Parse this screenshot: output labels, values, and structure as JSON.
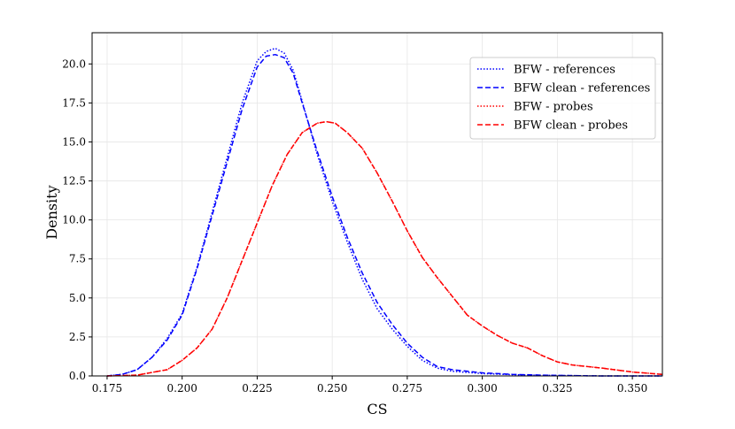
{
  "chart_data": {
    "type": "line",
    "xlabel": "CS",
    "ylabel": "Density",
    "xlim": [
      0.17,
      0.36
    ],
    "ylim": [
      0,
      22
    ],
    "xticks": [
      "0.175",
      "0.200",
      "0.225",
      "0.250",
      "0.275",
      "0.300",
      "0.325",
      "0.350"
    ],
    "yticks": [
      "0.0",
      "2.5",
      "5.0",
      "7.5",
      "10.0",
      "12.5",
      "15.0",
      "17.5",
      "20.0"
    ],
    "grid": true,
    "legend_position": "top-right",
    "series": [
      {
        "name": "BFW - references",
        "color": "#0000ff",
        "linestyle": "dotted",
        "x": [
          0.175,
          0.18,
          0.185,
          0.19,
          0.195,
          0.2,
          0.205,
          0.21,
          0.215,
          0.22,
          0.225,
          0.228,
          0.231,
          0.234,
          0.237,
          0.24,
          0.245,
          0.25,
          0.255,
          0.26,
          0.265,
          0.27,
          0.275,
          0.28,
          0.285,
          0.29,
          0.3,
          0.31,
          0.32,
          0.33,
          0.34,
          0.35,
          0.36
        ],
        "y": [
          0.0,
          0.1,
          0.4,
          1.2,
          2.4,
          4.0,
          7.0,
          10.5,
          14.0,
          17.5,
          20.2,
          20.8,
          21.0,
          20.7,
          19.6,
          17.6,
          14.2,
          11.2,
          8.6,
          6.2,
          4.3,
          3.0,
          1.9,
          1.0,
          0.5,
          0.3,
          0.15,
          0.08,
          0.04,
          0.02,
          0.0,
          0.0,
          0.0
        ]
      },
      {
        "name": "BFW clean - references",
        "color": "#0000ff",
        "linestyle": "dashed",
        "x": [
          0.175,
          0.18,
          0.185,
          0.19,
          0.195,
          0.2,
          0.205,
          0.21,
          0.215,
          0.22,
          0.225,
          0.228,
          0.231,
          0.234,
          0.237,
          0.24,
          0.245,
          0.25,
          0.255,
          0.26,
          0.265,
          0.27,
          0.275,
          0.28,
          0.285,
          0.29,
          0.3,
          0.31,
          0.32,
          0.33,
          0.34,
          0.35,
          0.36
        ],
        "y": [
          0.0,
          0.1,
          0.4,
          1.2,
          2.3,
          3.9,
          6.9,
          10.3,
          13.7,
          17.1,
          19.8,
          20.5,
          20.6,
          20.4,
          19.4,
          17.5,
          14.4,
          11.5,
          8.9,
          6.6,
          4.7,
          3.3,
          2.1,
          1.2,
          0.6,
          0.4,
          0.2,
          0.1,
          0.05,
          0.02,
          0.0,
          0.0,
          0.0
        ]
      },
      {
        "name": "BFW - probes",
        "color": "#ff0000",
        "linestyle": "dotted",
        "x": [
          0.175,
          0.185,
          0.195,
          0.2,
          0.205,
          0.21,
          0.215,
          0.22,
          0.225,
          0.23,
          0.235,
          0.24,
          0.245,
          0.248,
          0.251,
          0.255,
          0.26,
          0.265,
          0.27,
          0.275,
          0.28,
          0.285,
          0.29,
          0.295,
          0.3,
          0.305,
          0.31,
          0.315,
          0.32,
          0.325,
          0.33,
          0.34,
          0.35,
          0.36
        ],
        "y": [
          0.0,
          0.05,
          0.4,
          1.0,
          1.8,
          3.0,
          5.0,
          7.4,
          9.8,
          12.2,
          14.2,
          15.6,
          16.2,
          16.3,
          16.2,
          15.6,
          14.6,
          13.0,
          11.2,
          9.3,
          7.6,
          6.3,
          5.1,
          3.9,
          3.2,
          2.6,
          2.1,
          1.8,
          1.3,
          0.9,
          0.7,
          0.5,
          0.25,
          0.1
        ]
      },
      {
        "name": "BFW clean - probes",
        "color": "#ff0000",
        "linestyle": "dashed",
        "x": [
          0.175,
          0.185,
          0.195,
          0.2,
          0.205,
          0.21,
          0.215,
          0.22,
          0.225,
          0.23,
          0.235,
          0.24,
          0.245,
          0.248,
          0.251,
          0.255,
          0.26,
          0.265,
          0.27,
          0.275,
          0.28,
          0.285,
          0.29,
          0.295,
          0.3,
          0.305,
          0.31,
          0.315,
          0.32,
          0.325,
          0.33,
          0.34,
          0.35,
          0.36
        ],
        "y": [
          0.0,
          0.05,
          0.4,
          1.0,
          1.8,
          3.0,
          5.0,
          7.4,
          9.8,
          12.2,
          14.2,
          15.6,
          16.2,
          16.3,
          16.2,
          15.6,
          14.6,
          13.0,
          11.2,
          9.3,
          7.6,
          6.3,
          5.1,
          3.9,
          3.2,
          2.6,
          2.1,
          1.8,
          1.3,
          0.9,
          0.7,
          0.5,
          0.25,
          0.1
        ]
      }
    ]
  }
}
